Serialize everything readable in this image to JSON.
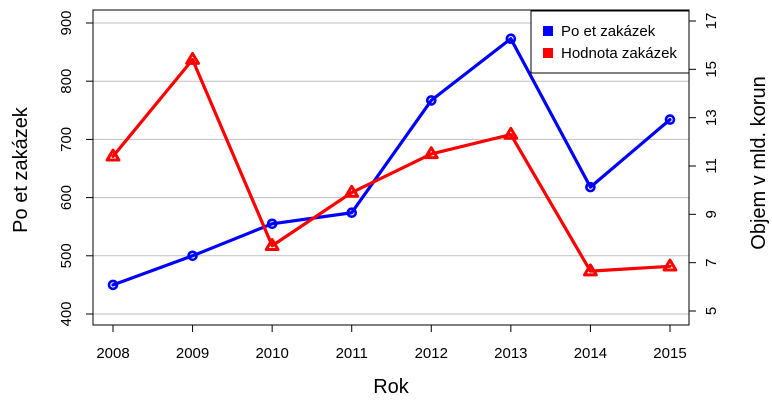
{
  "chart_data": {
    "type": "line",
    "xlabel": "Rok",
    "ylabel_left": "Po et zakázek",
    "ylabel_right": "Objem v mld. korun",
    "x": [
      "2008",
      "2009",
      "2010",
      "2011",
      "2012",
      "2013",
      "2014",
      "2015"
    ],
    "ylim_left": [
      400,
      900
    ],
    "yticks_left": [
      "400",
      "500",
      "600",
      "700",
      "800",
      "900"
    ],
    "ylim_right": [
      5,
      17
    ],
    "yticks_right": [
      "5",
      "7",
      "9",
      "11",
      "13",
      "15",
      "17"
    ],
    "grid": true,
    "legend_position": "top-right",
    "series": [
      {
        "name": "Po et zakázek",
        "axis": "left",
        "color": "#0000ff",
        "marker": "circle",
        "values": [
          450,
          500,
          555,
          574,
          767,
          873,
          618,
          734
        ]
      },
      {
        "name": "Hodnota zakázek",
        "axis": "right",
        "color": "#ff0000",
        "marker": "triangle",
        "values": [
          11.4,
          15.4,
          7.7,
          9.9,
          11.5,
          12.3,
          6.65,
          6.85
        ]
      }
    ]
  }
}
